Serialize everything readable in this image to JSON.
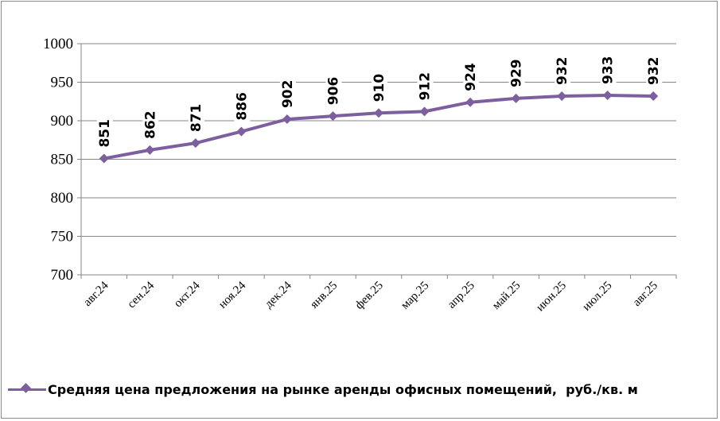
{
  "chart_data": {
    "type": "line",
    "categories": [
      "авг.24",
      "сен.24",
      "окт.24",
      "ноя.24",
      "дек.24",
      "янв.25",
      "фев.25",
      "мар.25",
      "апр.25",
      "май.25",
      "июн.25",
      "июл.25",
      "авг.25"
    ],
    "series": [
      {
        "name": "Средняя цена предложения на рынке аренды офисных помещений,  руб./кв. м",
        "values": [
          851,
          862,
          871,
          886,
          902,
          906,
          910,
          912,
          924,
          929,
          932,
          933,
          932
        ],
        "color": "#7d5fa0"
      }
    ],
    "ylim": [
      700,
      1000
    ],
    "yticks": [
      700,
      750,
      800,
      850,
      900,
      950,
      1000
    ],
    "grid": "horizontal",
    "legend_position": "bottom",
    "data_labels": true,
    "title": "",
    "xlabel": "",
    "ylabel": ""
  },
  "legend": {
    "label": "Средняя цена предложения на рынке аренды офисных помещений,  руб./кв. м"
  }
}
